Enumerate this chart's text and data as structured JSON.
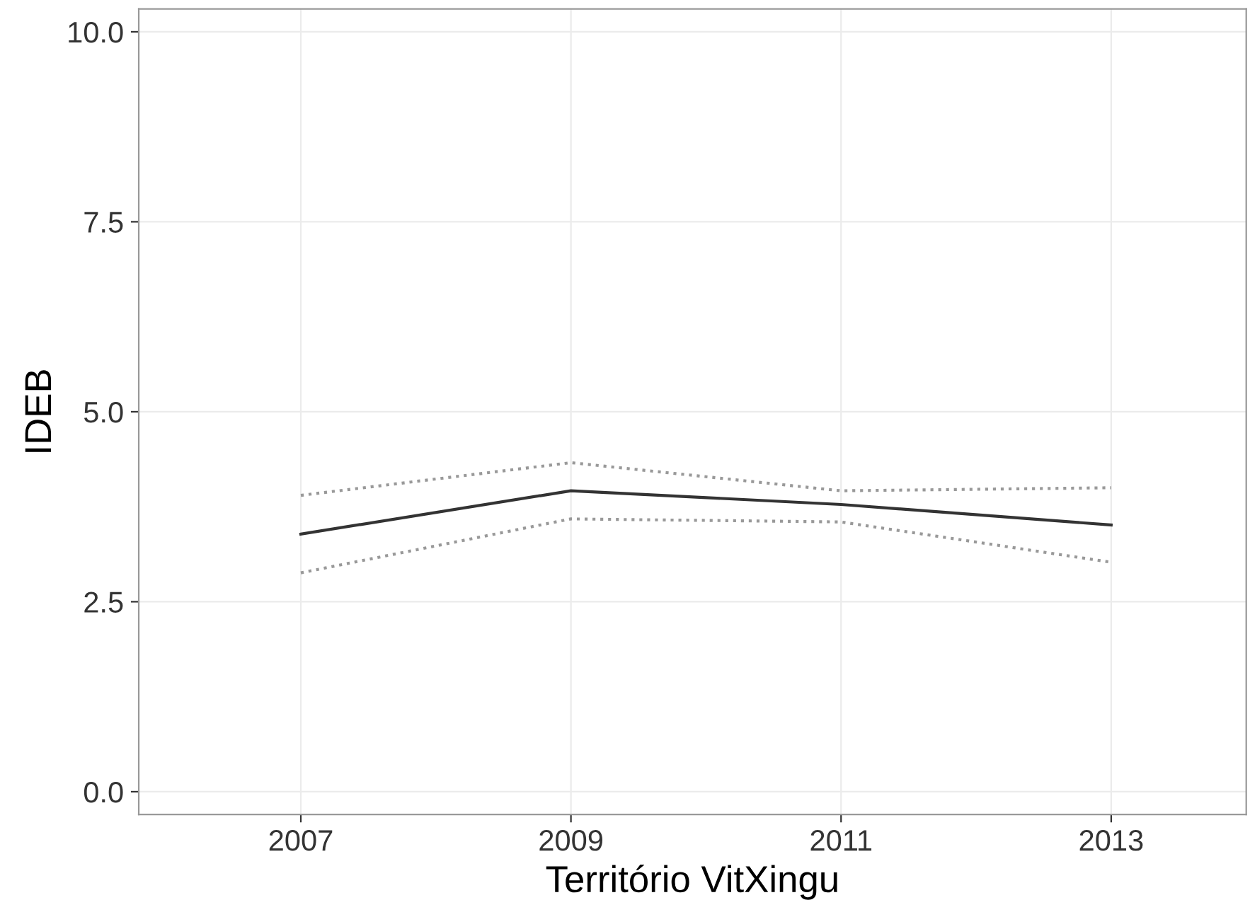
{
  "chart_data": {
    "type": "line",
    "xlabel": "Território VitXingu",
    "ylabel": "IDEB",
    "x": [
      2007,
      2009,
      2011,
      2013
    ],
    "series": [
      {
        "color": "#333333",
        "values": [
          3.39,
          3.96,
          3.78,
          3.51
        ],
        "line_style": "solid"
      },
      {
        "color": "#999999",
        "values": [
          3.9,
          4.33,
          3.96,
          4.0
        ],
        "line_style": "dotted"
      },
      {
        "color": "#999999",
        "values": [
          2.88,
          3.59,
          3.55,
          3.02
        ],
        "line_style": "dotted"
      }
    ],
    "xlim": [
      2005.8,
      2014.0
    ],
    "xticks": [
      2007,
      2009,
      2011,
      2013
    ],
    "ylim": [
      -0.3,
      10.3
    ],
    "yticks": [
      {
        "value": 0,
        "label": "0.0"
      },
      {
        "value": 2.5,
        "label": "2.5"
      },
      {
        "value": 5,
        "label": "5.0"
      },
      {
        "value": 7.5,
        "label": "7.5"
      },
      {
        "value": 10,
        "label": "10.0"
      }
    ],
    "grid": true,
    "marker": "none"
  }
}
